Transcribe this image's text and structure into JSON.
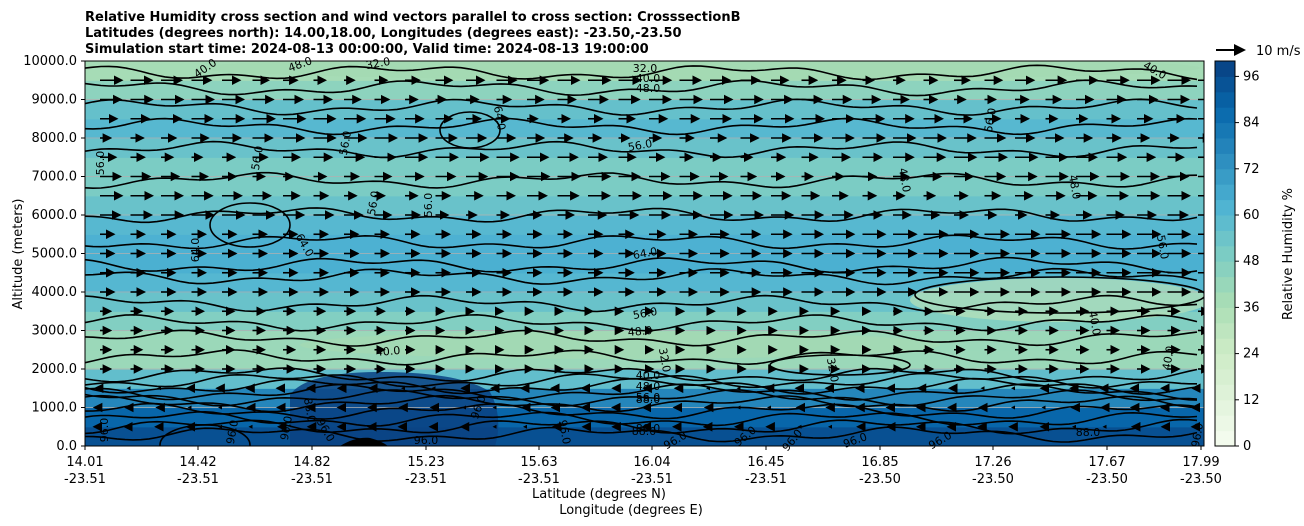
{
  "chart_data": {
    "type": "contourf",
    "title_lines": [
      "Relative Humidity cross section and wind vectors parallel to cross section: CrosssectionB",
      "Latitudes (degrees north): 14.00,18.00, Longitudes (degrees east): -23.50,-23.50",
      "Simulation start time: 2024-08-13 00:00:00, Valid time: 2024-08-13 19:00:00"
    ],
    "ylabel": "Altitude (meters)",
    "xlabel_line1": "Latitude (degrees N)",
    "xlabel_line2": "Longitude (degrees E)",
    "yticks": [
      "0.0",
      "1000.0",
      "2000.0",
      "3000.0",
      "4000.0",
      "5000.0",
      "6000.0",
      "7000.0",
      "8000.0",
      "9000.0",
      "10000.0"
    ],
    "ylim": [
      0,
      10000
    ],
    "x_ticks": [
      {
        "lat": "14.01",
        "lon": "-23.51"
      },
      {
        "lat": "14.42",
        "lon": "-23.51"
      },
      {
        "lat": "14.82",
        "lon": "-23.51"
      },
      {
        "lat": "15.23",
        "lon": "-23.51"
      },
      {
        "lat": "15.63",
        "lon": "-23.51"
      },
      {
        "lat": "16.04",
        "lon": "-23.51"
      },
      {
        "lat": "16.45",
        "lon": "-23.51"
      },
      {
        "lat": "16.85",
        "lon": "-23.50"
      },
      {
        "lat": "17.26",
        "lon": "-23.50"
      },
      {
        "lat": "17.67",
        "lon": "-23.50"
      },
      {
        "lat": "17.99",
        "lon": "-23.50"
      }
    ],
    "colorbar": {
      "label": "Relative Humidity %",
      "ticks": [
        "0",
        "12",
        "24",
        "36",
        "48",
        "60",
        "72",
        "84",
        "96"
      ],
      "range": [
        0,
        100
      ]
    },
    "quiver_key": "10 m/s",
    "contour_labels": [
      "40.0",
      "48.0",
      "32.0",
      "56.0",
      "64.0",
      "80.0",
      "88.0",
      "96.0"
    ],
    "profile": [
      {
        "z": 0,
        "rh": 98
      },
      {
        "z": 500,
        "rh": 92
      },
      {
        "z": 1000,
        "rh": 84
      },
      {
        "z": 1500,
        "rh": 70
      },
      {
        "z": 2000,
        "rh": 44
      },
      {
        "z": 2500,
        "rh": 38
      },
      {
        "z": 3000,
        "rh": 44
      },
      {
        "z": 3500,
        "rh": 52
      },
      {
        "z": 4000,
        "rh": 58
      },
      {
        "z": 4500,
        "rh": 63
      },
      {
        "z": 5000,
        "rh": 64
      },
      {
        "z": 5500,
        "rh": 62
      },
      {
        "z": 6000,
        "rh": 58
      },
      {
        "z": 6500,
        "rh": 52
      },
      {
        "z": 7000,
        "rh": 48
      },
      {
        "z": 7500,
        "rh": 52
      },
      {
        "z": 8000,
        "rh": 58
      },
      {
        "z": 8500,
        "rh": 62
      },
      {
        "z": 9000,
        "rh": 50
      },
      {
        "z": 9500,
        "rh": 40
      },
      {
        "z": 10000,
        "rh": 36
      }
    ]
  }
}
